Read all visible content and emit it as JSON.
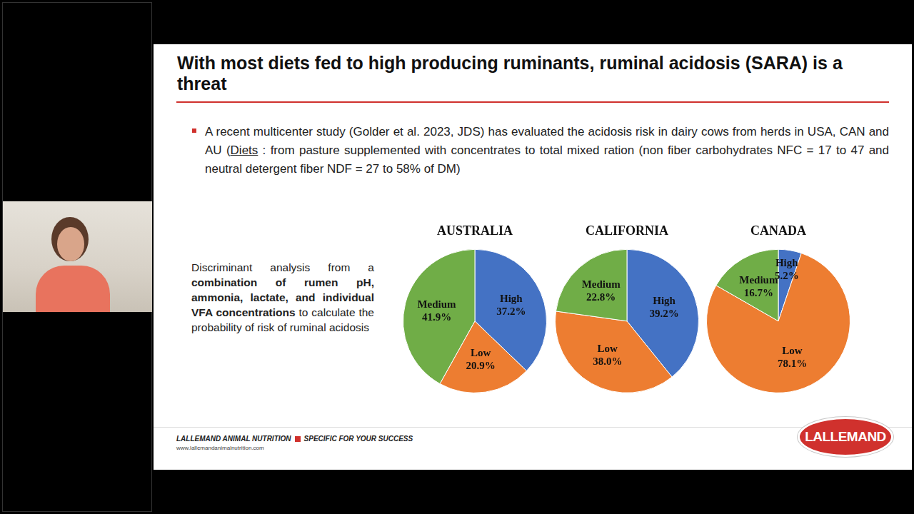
{
  "slide": {
    "title": "With most diets fed to high producing ruminants, ruminal acidosis (SARA) is a threat",
    "bullet": {
      "before": "A recent multicenter study (Golder et al. 2023, JDS) has evaluated the acidosis risk in dairy cows from herds in USA, CAN and AU (",
      "underlined": "Diets",
      "after": " : from pasture supplemented with concentrates to total mixed ration (non fiber carbohydrates NFC = 17 to 47 and neutral detergent fiber NDF = 27 to 58% of DM)"
    },
    "side_note": {
      "before": "Discriminant analysis from a ",
      "bold": "combination of rumen pH, ammonia, lactate, and individual VFA concentrations",
      "after": " to calculate the probability of risk of ruminal acidosis"
    },
    "footer": {
      "brand": "LALLEMAND ANIMAL NUTRITION",
      "tagline": "SPECIFIC FOR YOUR SUCCESS",
      "url": "www.lallemandanimalnutrition.com",
      "logo": "LALLEMAND"
    }
  },
  "chart_data": [
    {
      "type": "pie",
      "title": "AUSTRALIA",
      "categories": [
        "High",
        "Low",
        "Medium"
      ],
      "values": [
        37.2,
        20.9,
        41.9
      ],
      "value_labels": [
        "37.2%",
        "20.9%",
        "41.9%"
      ],
      "colors": [
        "#4472c4",
        "#ed7d31",
        "#70ad47"
      ],
      "data_labels": true
    },
    {
      "type": "pie",
      "title": "CALIFORNIA",
      "categories": [
        "High",
        "Low",
        "Medium"
      ],
      "values": [
        39.2,
        38.0,
        22.8
      ],
      "value_labels": [
        "39.2%",
        "38.0%",
        "22.8%"
      ],
      "colors": [
        "#4472c4",
        "#ed7d31",
        "#70ad47"
      ],
      "data_labels": true
    },
    {
      "type": "pie",
      "title": "CANADA",
      "categories": [
        "High",
        "Low",
        "Medium"
      ],
      "values": [
        5.2,
        78.1,
        16.7
      ],
      "value_labels": [
        "5.2%",
        "78.1%",
        "16.7%"
      ],
      "colors": [
        "#4472c4",
        "#ed7d31",
        "#70ad47"
      ],
      "data_labels": true
    }
  ]
}
